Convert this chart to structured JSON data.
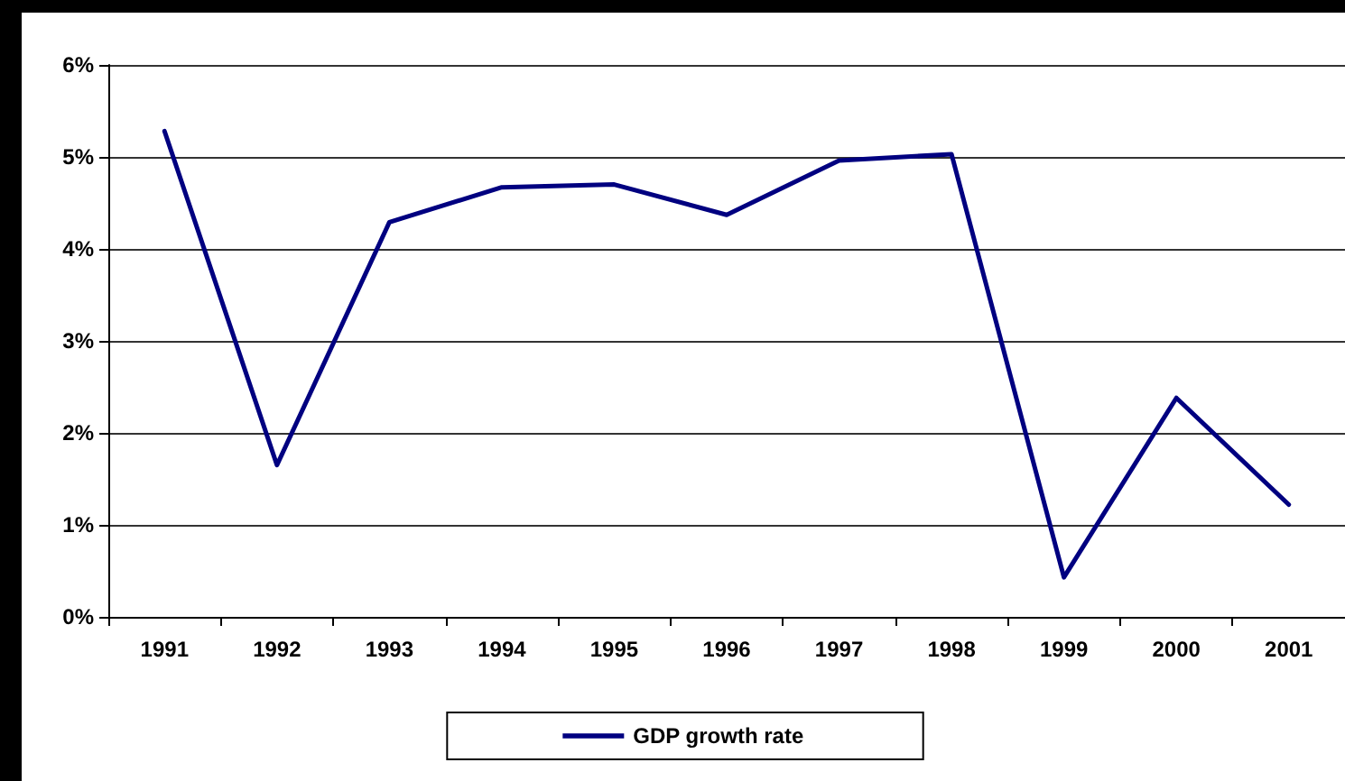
{
  "chart_data": {
    "type": "line",
    "categories": [
      "1991",
      "1992",
      "1993",
      "1994",
      "1995",
      "1996",
      "1997",
      "1998",
      "1999",
      "2000",
      "2001"
    ],
    "series": [
      {
        "name": "GDP growth rate",
        "color": "#000080",
        "values": [
          5.28,
          1.65,
          4.29,
          4.67,
          4.7,
          4.37,
          4.96,
          5.03,
          0.43,
          2.38,
          1.22
        ]
      }
    ],
    "ylim": [
      0,
      6
    ],
    "yticks": [
      {
        "value": 0,
        "label": "0%"
      },
      {
        "value": 1,
        "label": "1%"
      },
      {
        "value": 2,
        "label": "2%"
      },
      {
        "value": 3,
        "label": "3%"
      },
      {
        "value": 4,
        "label": "4%"
      },
      {
        "value": 5,
        "label": "5%"
      },
      {
        "value": 6,
        "label": "6%"
      }
    ],
    "grid": "y",
    "legend": "bottom",
    "marker": "none",
    "line_style": "solid"
  }
}
